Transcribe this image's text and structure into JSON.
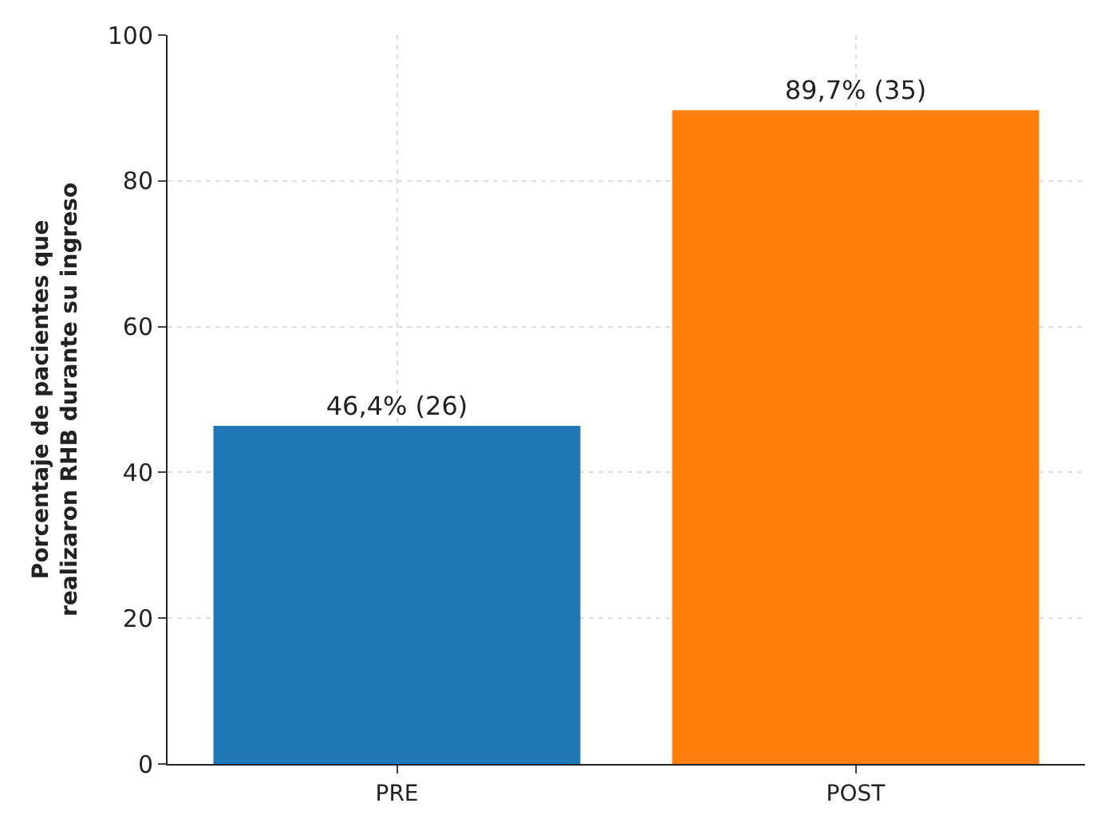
{
  "chart_data": {
    "type": "bar",
    "ylabel": "Porcentaje de pacientes que\nrealizaron RHB durante su ingreso",
    "categories": [
      "PRE",
      "POST"
    ],
    "values": [
      46.4,
      89.7
    ],
    "colors": [
      "#1f77b4",
      "#ff7f0e"
    ],
    "value_labels": [
      "46,4% (26)",
      "89,7% (35)"
    ],
    "ylim": [
      0,
      100
    ],
    "yticks": [
      0,
      20,
      40,
      60,
      80,
      100
    ],
    "grid": true
  }
}
